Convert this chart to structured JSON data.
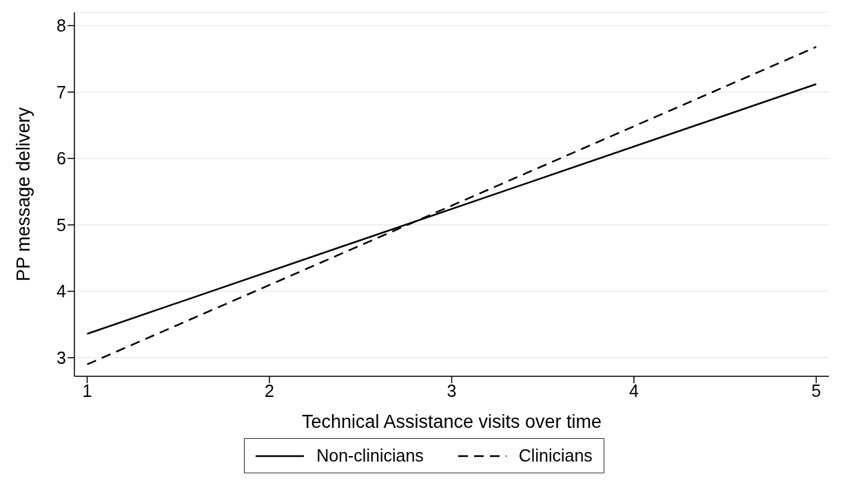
{
  "chart_data": {
    "type": "line",
    "xlabel": "Technical Assistance visits over time",
    "ylabel": "PP message delivery",
    "x": [
      1,
      5
    ],
    "series": [
      {
        "name": "Non-clinicians",
        "color": "#000000",
        "values": [
          3.36,
          7.12
        ],
        "line_style": "solid"
      },
      {
        "name": "Clinicians",
        "color": "#000000",
        "values": [
          2.9,
          7.68
        ],
        "line_style": "dashed"
      }
    ],
    "xlim": [
      0.93,
      5.07
    ],
    "xticks": [
      1,
      2,
      3,
      4,
      5
    ],
    "ylim": [
      2.72,
      8.2
    ],
    "yticks": [
      3,
      4,
      5,
      6,
      7,
      8
    ],
    "grid": "y",
    "legend": "bottom",
    "marker": "none"
  }
}
